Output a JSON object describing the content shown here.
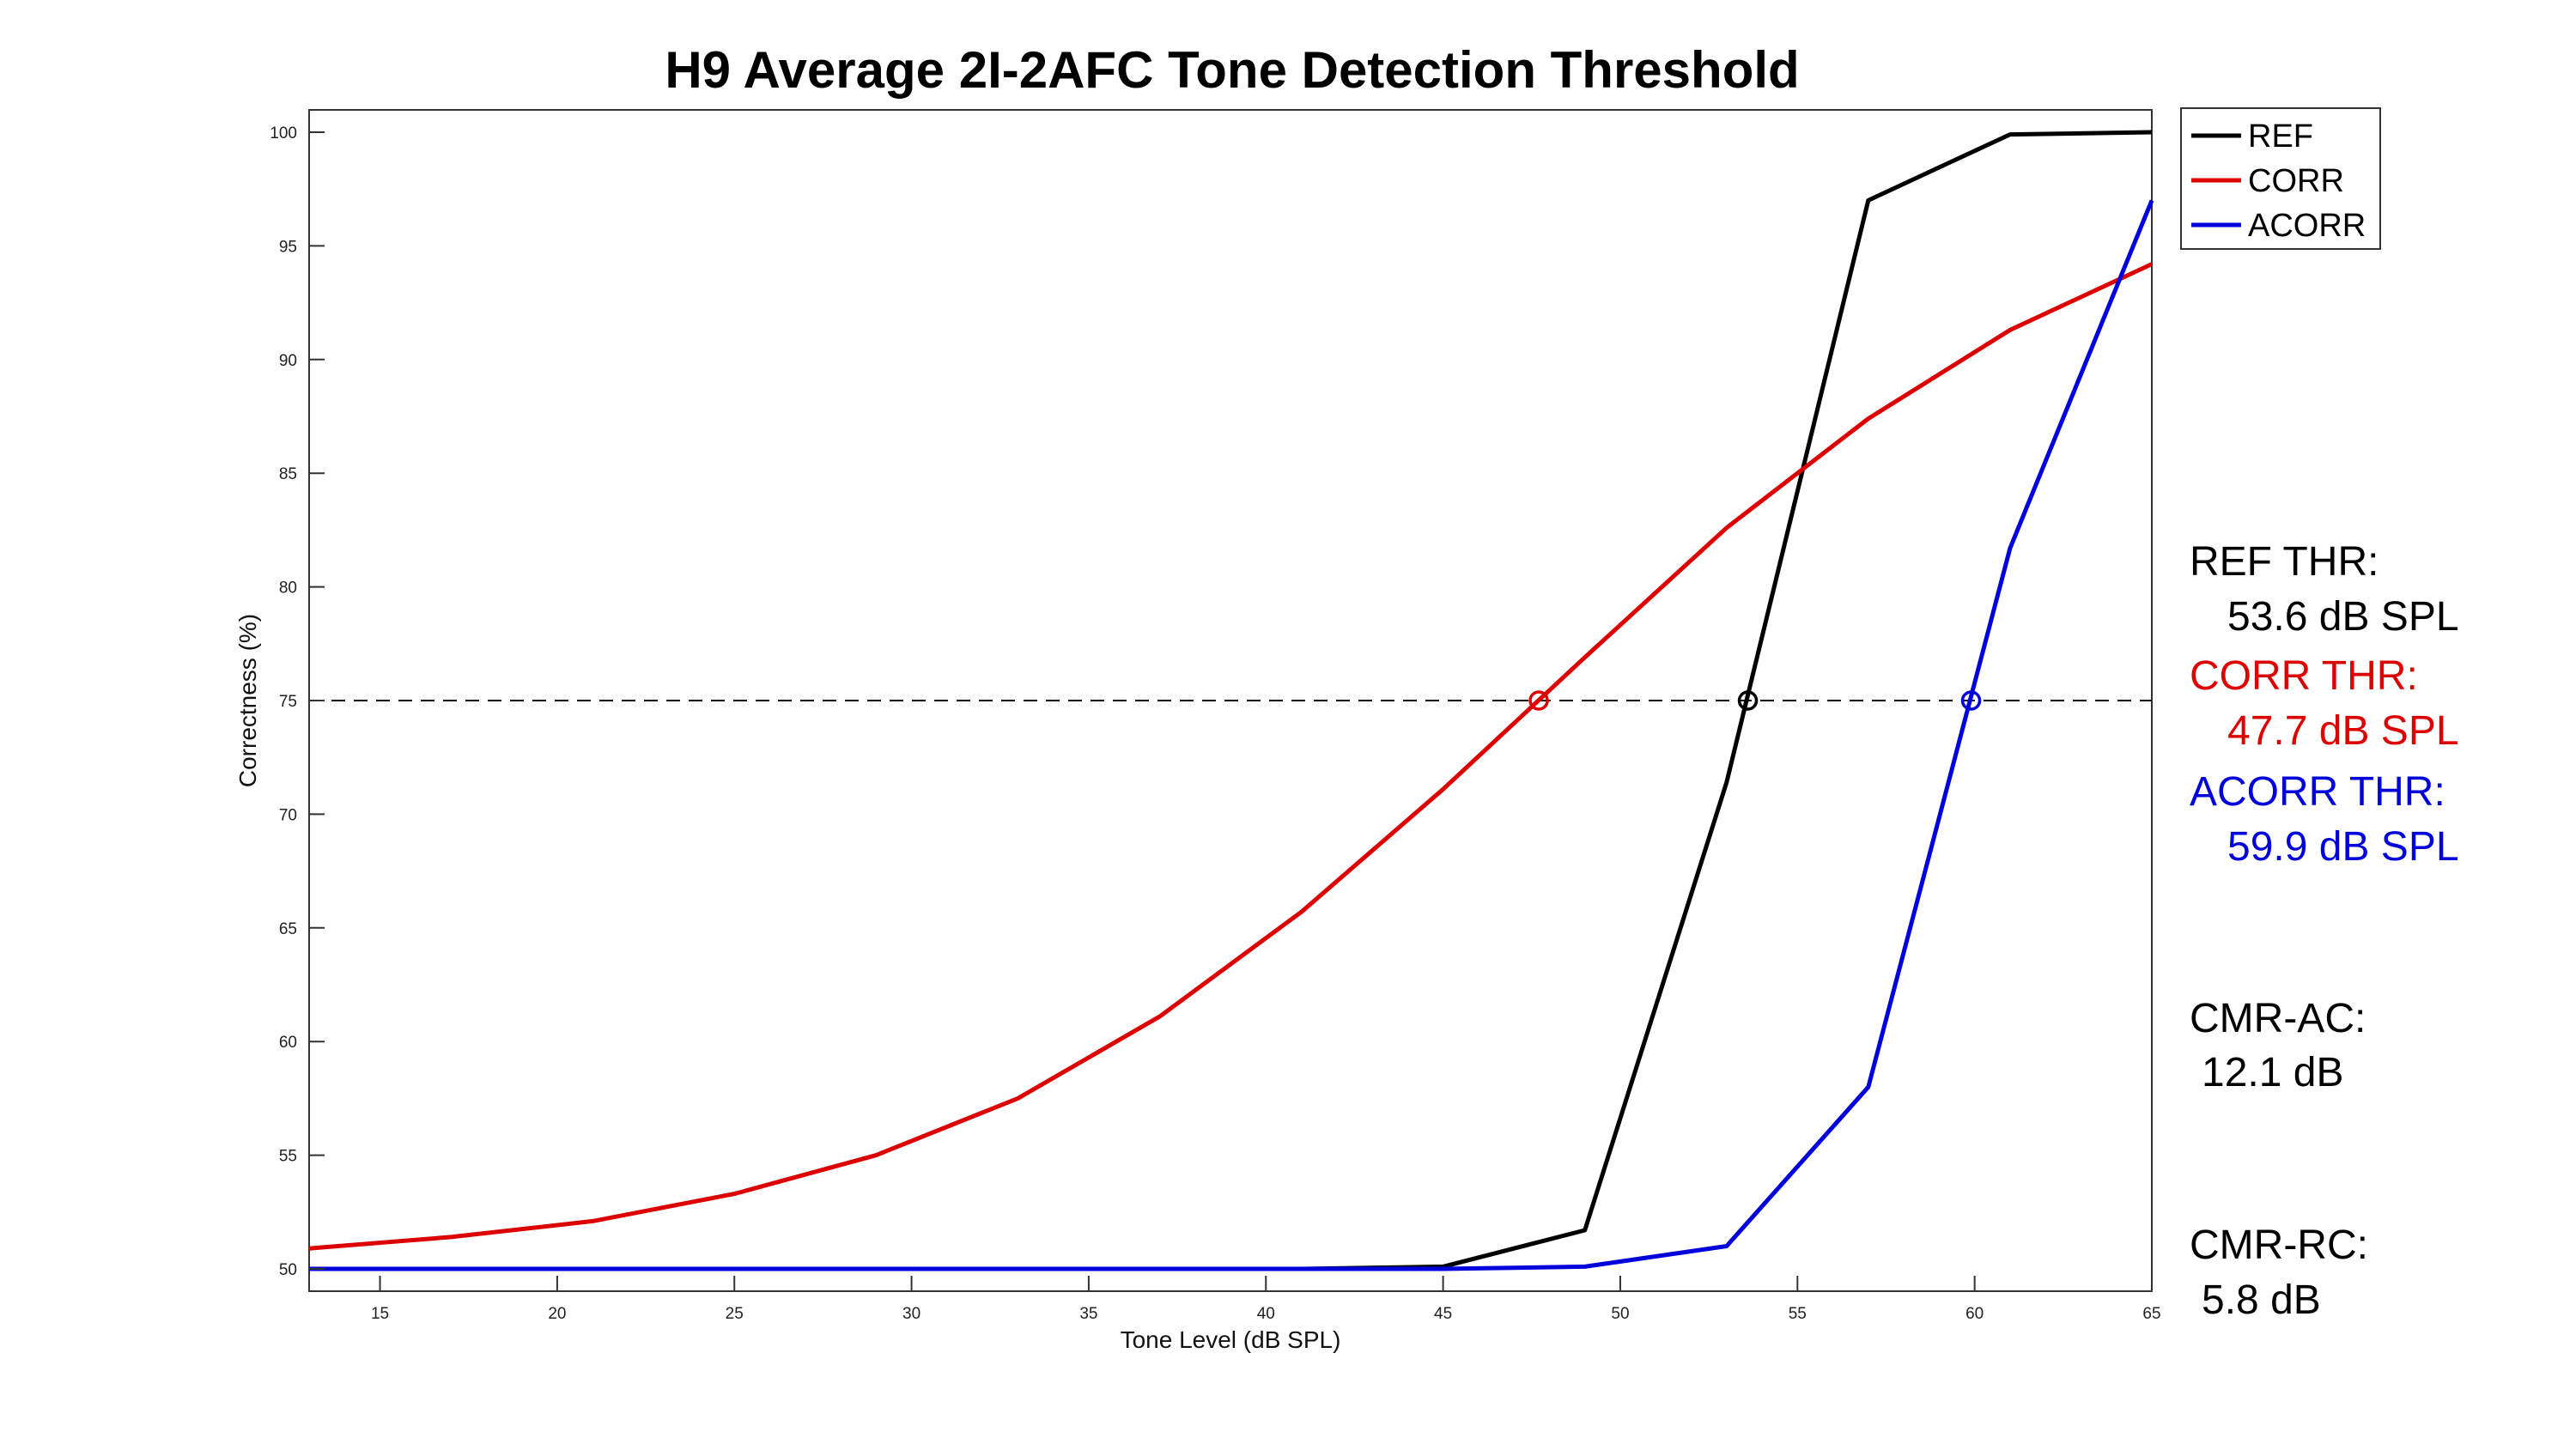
{
  "chart_data": {
    "type": "line",
    "title": "H9 Average 2I-2AFC Tone Detection Threshold",
    "xlabel": "Tone Level (dB SPL)",
    "ylabel": "Correctness (%)",
    "xlim": [
      13,
      65
    ],
    "ylim": [
      49,
      101
    ],
    "xticks": [
      15,
      20,
      25,
      30,
      35,
      40,
      45,
      50,
      55,
      60,
      65
    ],
    "yticks": [
      50,
      55,
      60,
      65,
      70,
      75,
      80,
      85,
      90,
      95,
      100
    ],
    "grid": false,
    "legend_position": "top-right",
    "reference_line": {
      "y": 75,
      "style": "dashed",
      "color": "#000000"
    },
    "series": [
      {
        "name": "REF",
        "color": "#000000",
        "x": [
          13,
          17,
          21,
          25,
          29,
          33,
          37,
          41,
          45,
          49,
          53,
          57,
          61,
          65
        ],
        "y": [
          50,
          50,
          50,
          50,
          50,
          50,
          50,
          50,
          50.1,
          51.7,
          71.4,
          97.0,
          99.9,
          100
        ]
      },
      {
        "name": "CORR",
        "color": "#dd0000",
        "x": [
          13,
          17,
          21,
          25,
          29,
          33,
          37,
          41,
          45,
          49,
          53,
          57,
          61,
          65
        ],
        "y": [
          50.9,
          51.4,
          52.1,
          53.3,
          55.0,
          57.5,
          61.1,
          65.7,
          71.1,
          76.9,
          82.6,
          87.4,
          91.3,
          94.2
        ]
      },
      {
        "name": "ACORR",
        "color": "#0000dd",
        "x": [
          13,
          17,
          21,
          25,
          29,
          33,
          37,
          41,
          45,
          49,
          53,
          57,
          61,
          65
        ],
        "y": [
          50,
          50,
          50,
          50,
          50,
          50,
          50,
          50,
          50,
          50.1,
          51.0,
          58.0,
          81.7,
          97.0
        ]
      }
    ],
    "threshold_markers": [
      {
        "series": "CORR",
        "x": 47.7,
        "y": 75,
        "color": "#dd0000"
      },
      {
        "series": "REF",
        "x": 53.6,
        "y": 75,
        "color": "#000000"
      },
      {
        "series": "ACORR",
        "x": 59.9,
        "y": 75,
        "color": "#0000dd"
      }
    ]
  },
  "annotations": {
    "ref_thr_label": "REF THR:",
    "ref_thr_value": "53.6 dB SPL",
    "corr_thr_label": "CORR THR:",
    "corr_thr_value": "47.7 dB SPL",
    "acorr_thr_label": "ACORR THR:",
    "acorr_thr_value": "59.9 dB SPL",
    "cmr_ac_label": "CMR-AC:",
    "cmr_ac_value": "12.1 dB",
    "cmr_rc_label": "CMR-RC:",
    "cmr_rc_value": "5.8 dB"
  },
  "colors": {
    "ref": "#000000",
    "corr": "#dd0000",
    "acorr": "#0000dd"
  }
}
